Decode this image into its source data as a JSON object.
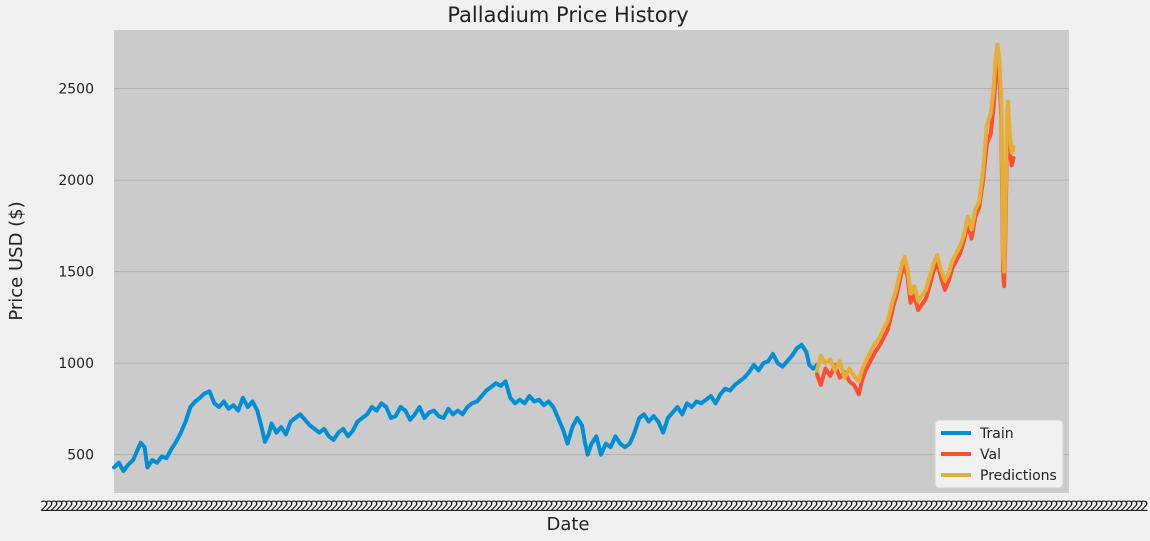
{
  "chart_data": {
    "type": "line",
    "title": "Palladium Price History",
    "xlabel": "Date",
    "ylabel": "Price USD ($)",
    "ylim": [
      290,
      2820
    ],
    "yticks": [
      500,
      1000,
      1500,
      2000,
      2500
    ],
    "grid": "horizontal",
    "legend_position": "bottom-right",
    "x": {
      "start_index": 0,
      "end_index": 1000,
      "train_end_index": 770
    },
    "series": [
      {
        "name": "Train",
        "color": "#008fd5",
        "points": [
          [
            0,
            430
          ],
          [
            5,
            455
          ],
          [
            10,
            410
          ],
          [
            15,
            445
          ],
          [
            20,
            470
          ],
          [
            25,
            530
          ],
          [
            28,
            565
          ],
          [
            32,
            540
          ],
          [
            35,
            430
          ],
          [
            40,
            470
          ],
          [
            45,
            455
          ],
          [
            50,
            490
          ],
          [
            55,
            480
          ],
          [
            60,
            530
          ],
          [
            65,
            570
          ],
          [
            70,
            620
          ],
          [
            75,
            680
          ],
          [
            80,
            760
          ],
          [
            85,
            790
          ],
          [
            90,
            810
          ],
          [
            95,
            835
          ],
          [
            100,
            845
          ],
          [
            105,
            780
          ],
          [
            110,
            760
          ],
          [
            115,
            790
          ],
          [
            120,
            750
          ],
          [
            125,
            770
          ],
          [
            130,
            740
          ],
          [
            135,
            810
          ],
          [
            140,
            760
          ],
          [
            145,
            790
          ],
          [
            150,
            740
          ],
          [
            155,
            640
          ],
          [
            158,
            570
          ],
          [
            162,
            610
          ],
          [
            165,
            670
          ],
          [
            170,
            620
          ],
          [
            175,
            650
          ],
          [
            180,
            610
          ],
          [
            185,
            680
          ],
          [
            190,
            700
          ],
          [
            195,
            720
          ],
          [
            200,
            690
          ],
          [
            205,
            660
          ],
          [
            210,
            640
          ],
          [
            215,
            620
          ],
          [
            220,
            640
          ],
          [
            225,
            600
          ],
          [
            230,
            580
          ],
          [
            235,
            620
          ],
          [
            240,
            640
          ],
          [
            245,
            600
          ],
          [
            250,
            630
          ],
          [
            255,
            680
          ],
          [
            260,
            700
          ],
          [
            265,
            720
          ],
          [
            270,
            760
          ],
          [
            275,
            740
          ],
          [
            280,
            780
          ],
          [
            285,
            760
          ],
          [
            290,
            700
          ],
          [
            295,
            710
          ],
          [
            300,
            760
          ],
          [
            305,
            740
          ],
          [
            310,
            690
          ],
          [
            315,
            720
          ],
          [
            320,
            760
          ],
          [
            325,
            700
          ],
          [
            330,
            730
          ],
          [
            335,
            740
          ],
          [
            340,
            710
          ],
          [
            345,
            700
          ],
          [
            350,
            750
          ],
          [
            355,
            720
          ],
          [
            360,
            740
          ],
          [
            365,
            720
          ],
          [
            370,
            760
          ],
          [
            375,
            780
          ],
          [
            380,
            790
          ],
          [
            385,
            820
          ],
          [
            390,
            850
          ],
          [
            395,
            870
          ],
          [
            400,
            890
          ],
          [
            405,
            875
          ],
          [
            410,
            900
          ],
          [
            415,
            810
          ],
          [
            420,
            780
          ],
          [
            425,
            800
          ],
          [
            430,
            780
          ],
          [
            435,
            820
          ],
          [
            440,
            790
          ],
          [
            445,
            800
          ],
          [
            450,
            770
          ],
          [
            455,
            790
          ],
          [
            460,
            760
          ],
          [
            465,
            700
          ],
          [
            470,
            640
          ],
          [
            475,
            560
          ],
          [
            480,
            650
          ],
          [
            485,
            700
          ],
          [
            490,
            660
          ],
          [
            493,
            570
          ],
          [
            496,
            500
          ],
          [
            500,
            560
          ],
          [
            505,
            600
          ],
          [
            510,
            500
          ],
          [
            515,
            560
          ],
          [
            520,
            540
          ],
          [
            525,
            600
          ],
          [
            530,
            560
          ],
          [
            535,
            540
          ],
          [
            540,
            560
          ],
          [
            545,
            620
          ],
          [
            550,
            700
          ],
          [
            555,
            720
          ],
          [
            560,
            680
          ],
          [
            565,
            710
          ],
          [
            570,
            680
          ],
          [
            575,
            620
          ],
          [
            580,
            700
          ],
          [
            585,
            730
          ],
          [
            590,
            760
          ],
          [
            595,
            720
          ],
          [
            600,
            780
          ],
          [
            605,
            760
          ],
          [
            610,
            790
          ],
          [
            615,
            780
          ],
          [
            620,
            800
          ],
          [
            625,
            820
          ],
          [
            630,
            780
          ],
          [
            635,
            830
          ],
          [
            640,
            860
          ],
          [
            645,
            850
          ],
          [
            650,
            880
          ],
          [
            655,
            900
          ],
          [
            660,
            920
          ],
          [
            665,
            950
          ],
          [
            670,
            990
          ],
          [
            675,
            960
          ],
          [
            680,
            1000
          ],
          [
            685,
            1010
          ],
          [
            690,
            1050
          ],
          [
            695,
            1000
          ],
          [
            700,
            980
          ],
          [
            705,
            1010
          ],
          [
            710,
            1040
          ],
          [
            715,
            1080
          ],
          [
            720,
            1100
          ],
          [
            725,
            1060
          ],
          [
            728,
            990
          ],
          [
            732,
            970
          ],
          [
            736,
            990
          ]
        ]
      },
      {
        "name": "Val",
        "color": "#fc4f30",
        "points": [
          [
            736,
            940
          ],
          [
            740,
            880
          ],
          [
            745,
            970
          ],
          [
            750,
            930
          ],
          [
            755,
            990
          ],
          [
            760,
            920
          ],
          [
            765,
            950
          ],
          [
            770,
            900
          ],
          [
            775,
            880
          ],
          [
            780,
            830
          ],
          [
            783,
            900
          ],
          [
            787,
            960
          ],
          [
            792,
            1010
          ],
          [
            797,
            1060
          ],
          [
            802,
            1100
          ],
          [
            806,
            1140
          ],
          [
            810,
            1180
          ],
          [
            813,
            1240
          ],
          [
            816,
            1310
          ],
          [
            819,
            1360
          ],
          [
            822,
            1430
          ],
          [
            825,
            1500
          ],
          [
            828,
            1530
          ],
          [
            831,
            1470
          ],
          [
            834,
            1330
          ],
          [
            838,
            1370
          ],
          [
            842,
            1290
          ],
          [
            846,
            1320
          ],
          [
            850,
            1350
          ],
          [
            854,
            1420
          ],
          [
            858,
            1500
          ],
          [
            862,
            1550
          ],
          [
            866,
            1470
          ],
          [
            870,
            1400
          ],
          [
            874,
            1450
          ],
          [
            878,
            1520
          ],
          [
            882,
            1560
          ],
          [
            886,
            1600
          ],
          [
            890,
            1670
          ],
          [
            894,
            1760
          ],
          [
            898,
            1680
          ],
          [
            902,
            1800
          ],
          [
            906,
            1850
          ],
          [
            910,
            2000
          ],
          [
            914,
            2200
          ],
          [
            918,
            2250
          ],
          [
            921,
            2400
          ],
          [
            923,
            2550
          ],
          [
            925,
            2650
          ],
          [
            927,
            2580
          ],
          [
            929,
            2350
          ],
          [
            930,
            1900
          ],
          [
            931,
            1500
          ],
          [
            932,
            1420
          ],
          [
            933,
            1600
          ],
          [
            934,
            1900
          ],
          [
            935,
            2200
          ],
          [
            936,
            2300
          ],
          [
            938,
            2150
          ],
          [
            940,
            2080
          ],
          [
            942,
            2120
          ]
        ]
      },
      {
        "name": "Predictions",
        "color": "#e5ae38",
        "points": [
          [
            736,
            960
          ],
          [
            740,
            1040
          ],
          [
            745,
            1000
          ],
          [
            750,
            1020
          ],
          [
            755,
            960
          ],
          [
            760,
            1010
          ],
          [
            765,
            920
          ],
          [
            770,
            970
          ],
          [
            775,
            930
          ],
          [
            780,
            900
          ],
          [
            783,
            960
          ],
          [
            787,
            1010
          ],
          [
            792,
            1060
          ],
          [
            797,
            1110
          ],
          [
            802,
            1140
          ],
          [
            806,
            1190
          ],
          [
            810,
            1230
          ],
          [
            813,
            1290
          ],
          [
            816,
            1350
          ],
          [
            819,
            1400
          ],
          [
            822,
            1470
          ],
          [
            825,
            1540
          ],
          [
            828,
            1580
          ],
          [
            831,
            1510
          ],
          [
            834,
            1380
          ],
          [
            838,
            1420
          ],
          [
            842,
            1340
          ],
          [
            846,
            1370
          ],
          [
            850,
            1400
          ],
          [
            854,
            1470
          ],
          [
            858,
            1540
          ],
          [
            862,
            1590
          ],
          [
            866,
            1510
          ],
          [
            870,
            1450
          ],
          [
            874,
            1490
          ],
          [
            878,
            1560
          ],
          [
            882,
            1600
          ],
          [
            886,
            1640
          ],
          [
            890,
            1700
          ],
          [
            894,
            1800
          ],
          [
            898,
            1730
          ],
          [
            902,
            1840
          ],
          [
            906,
            1880
          ],
          [
            910,
            2050
          ],
          [
            914,
            2300
          ],
          [
            918,
            2360
          ],
          [
            921,
            2500
          ],
          [
            923,
            2650
          ],
          [
            925,
            2740
          ],
          [
            927,
            2660
          ],
          [
            929,
            2450
          ],
          [
            930,
            2050
          ],
          [
            931,
            1600
          ],
          [
            932,
            1500
          ],
          [
            933,
            1700
          ],
          [
            934,
            2000
          ],
          [
            935,
            2350
          ],
          [
            936,
            2430
          ],
          [
            938,
            2250
          ],
          [
            940,
            2150
          ],
          [
            942,
            2180
          ]
        ]
      }
    ]
  }
}
